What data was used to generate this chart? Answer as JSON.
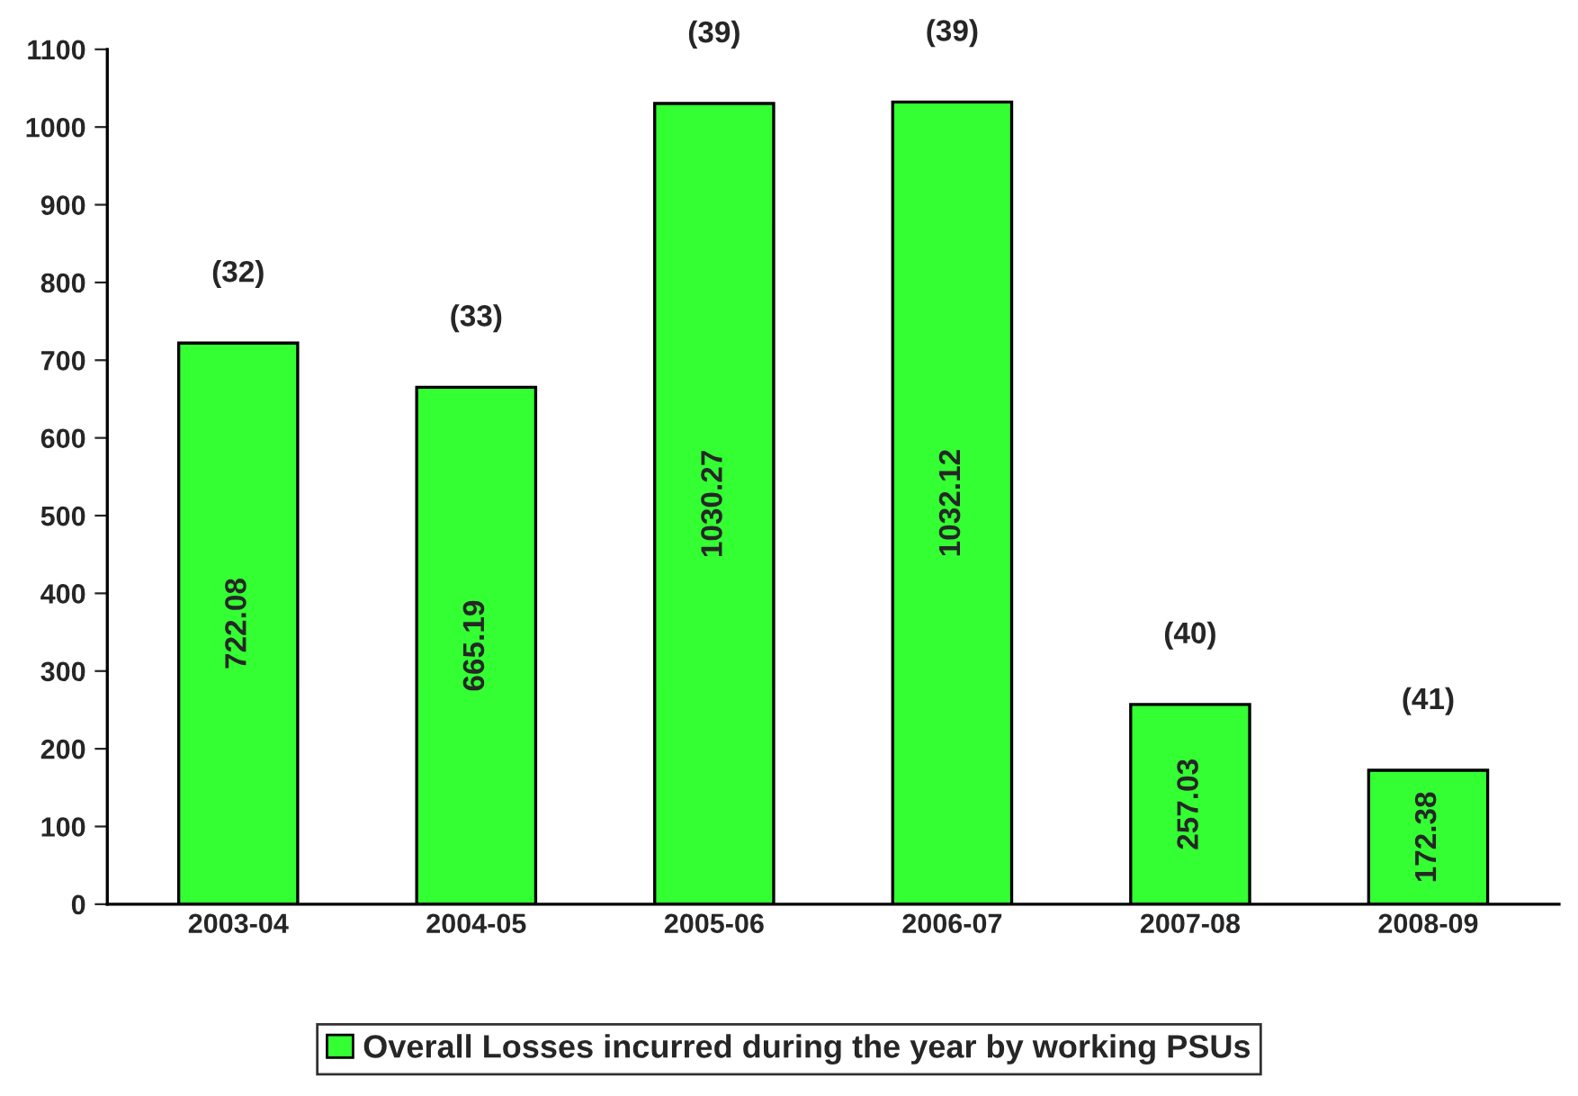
{
  "chart_data": {
    "type": "bar",
    "categories": [
      "2003-04",
      "2004-05",
      "2005-06",
      "2006-07",
      "2007-08",
      "2008-09"
    ],
    "series": [
      {
        "name": "Overall Losses incurred during the year by working PSUs",
        "color": "#33ff33",
        "values": [
          722.08,
          665.19,
          1030.27,
          1032.12,
          257.03,
          172.38
        ]
      }
    ],
    "data_labels": true,
    "ylim": [
      0,
      1100
    ],
    "yticks": [
      0,
      100,
      200,
      300,
      400,
      500,
      600,
      700,
      800,
      900,
      1000,
      1100
    ],
    "grid": false,
    "legend": "bottom",
    "annotations": [
      {
        "text": "(32)",
        "x": "2003-04",
        "y": 722.08
      },
      {
        "text": "(33)",
        "x": "2004-05",
        "y": 665.19
      },
      {
        "text": "(39)",
        "x": "2005-06",
        "y": 1030.27
      },
      {
        "text": "(39)",
        "x": "2006-07",
        "y": 1032.12
      },
      {
        "text": "(40)",
        "x": "2007-08",
        "y": 257.03
      },
      {
        "text": "(41)",
        "x": "2008-09",
        "y": 172.38
      }
    ]
  }
}
